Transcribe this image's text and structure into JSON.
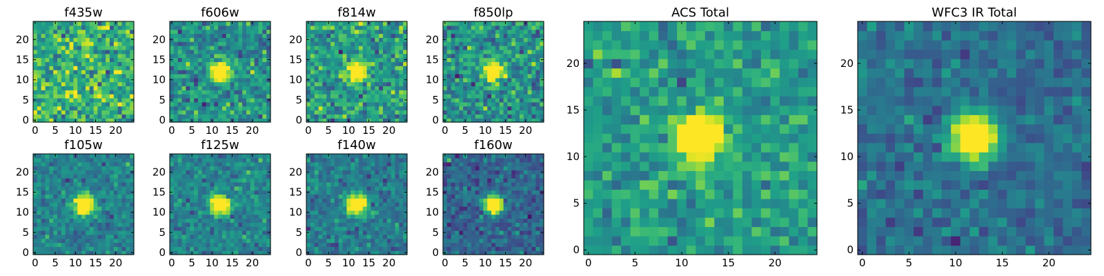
{
  "chart_data": {
    "type": "heatmap",
    "colormap": "viridis",
    "grid": false,
    "panels": [
      {
        "title": "f435w",
        "xlim": [
          0,
          24
        ],
        "ylim": [
          0,
          24
        ],
        "xticks": [
          0,
          5,
          10,
          15,
          20
        ],
        "yticks": [
          0,
          5,
          10,
          15,
          20
        ],
        "source_center": null,
        "peak": 0.0,
        "noise_mean": 0.64,
        "noise_std": 0.16
      },
      {
        "title": "f606w",
        "xlim": [
          0,
          24
        ],
        "ylim": [
          0,
          24
        ],
        "xticks": [
          0,
          5,
          10,
          15,
          20
        ],
        "yticks": [
          0,
          5,
          10,
          15,
          20
        ],
        "source_center": [
          12,
          12
        ],
        "peak": 0.92,
        "noise_mean": 0.5,
        "noise_std": 0.13
      },
      {
        "title": "f814w",
        "xlim": [
          0,
          24
        ],
        "ylim": [
          0,
          24
        ],
        "xticks": [
          0,
          5,
          10,
          15,
          20
        ],
        "yticks": [
          0,
          5,
          10,
          15,
          20
        ],
        "source_center": [
          12,
          12
        ],
        "peak": 0.8,
        "noise_mean": 0.55,
        "noise_std": 0.14
      },
      {
        "title": "f850lp",
        "xlim": [
          0,
          24
        ],
        "ylim": [
          0,
          24
        ],
        "xticks": [
          0,
          5,
          10,
          15,
          20
        ],
        "yticks": [
          0,
          5,
          10,
          15,
          20
        ],
        "source_center": [
          12,
          12
        ],
        "peak": 0.85,
        "noise_mean": 0.52,
        "noise_std": 0.14
      },
      {
        "title": "f105w",
        "xlim": [
          0,
          24
        ],
        "ylim": [
          0,
          24
        ],
        "xticks": [
          0,
          5,
          10,
          15,
          20
        ],
        "yticks": [
          0,
          5,
          10,
          15,
          20
        ],
        "source_center": [
          12,
          12
        ],
        "peak": 0.95,
        "noise_mean": 0.44,
        "noise_std": 0.09
      },
      {
        "title": "f125w",
        "xlim": [
          0,
          24
        ],
        "ylim": [
          0,
          24
        ],
        "xticks": [
          0,
          5,
          10,
          15,
          20
        ],
        "yticks": [
          0,
          5,
          10,
          15,
          20
        ],
        "source_center": [
          12,
          12
        ],
        "peak": 0.95,
        "noise_mean": 0.45,
        "noise_std": 0.09
      },
      {
        "title": "f140w",
        "xlim": [
          0,
          24
        ],
        "ylim": [
          0,
          24
        ],
        "xticks": [
          0,
          5,
          10,
          15,
          20
        ],
        "yticks": [
          0,
          5,
          10,
          15,
          20
        ],
        "source_center": [
          12,
          12
        ],
        "peak": 0.95,
        "noise_mean": 0.42,
        "noise_std": 0.09
      },
      {
        "title": "f160w",
        "xlim": [
          0,
          24
        ],
        "ylim": [
          0,
          24
        ],
        "xticks": [
          0,
          5,
          10,
          15,
          20
        ],
        "yticks": [
          0,
          5,
          10,
          15,
          20
        ],
        "source_center": [
          12,
          12
        ],
        "peak": 0.95,
        "noise_mean": 0.32,
        "noise_std": 0.09
      },
      {
        "title": "ACS Total",
        "xlim": [
          0,
          24
        ],
        "ylim": [
          0,
          24
        ],
        "xticks": [
          0,
          5,
          10,
          15,
          20
        ],
        "yticks": [
          0,
          5,
          10,
          15,
          20
        ],
        "source_center": [
          12,
          12
        ],
        "peak": 0.98,
        "noise_mean": 0.55,
        "noise_std": 0.1
      },
      {
        "title": "WFC3 IR Total",
        "xlim": [
          0,
          24
        ],
        "ylim": [
          0,
          24
        ],
        "xticks": [
          0,
          5,
          10,
          15,
          20
        ],
        "yticks": [
          0,
          5,
          10,
          15,
          20
        ],
        "source_center": [
          12,
          12
        ],
        "peak": 0.98,
        "noise_mean": 0.37,
        "noise_std": 0.08
      }
    ]
  }
}
